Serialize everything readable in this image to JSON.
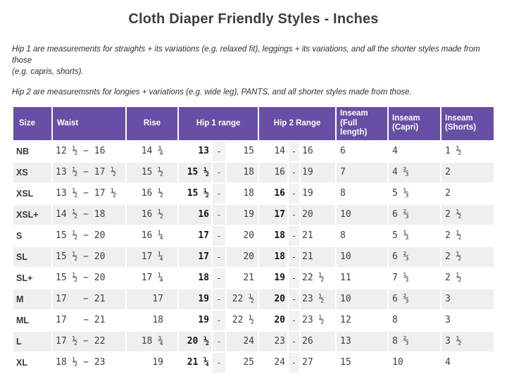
{
  "title": "Cloth Diaper Friendly Styles - Inches",
  "intro": {
    "hip1_lines": [
      "Hip 1 are measurements for straights + its variations (e.g. relaxed fit), leggings + its variations, and all the shorter styles made from those",
      "(e.g. capris, shorts)."
    ],
    "hip2": "Hip 2 are measuremsnts for longies + variations (e.g. wide leg), PANTS, and all shorter styles made from those."
  },
  "table": {
    "dash": "-",
    "colors": {
      "header_bg": "#674EA7",
      "header_text": "#FFFFFF",
      "row_stripe": "#EFEFEF",
      "dash_cell": "#F2F2F2"
    },
    "headers": {
      "size": "Size",
      "waist": "Waist",
      "rise": "Rise",
      "hip1": "Hip 1 range",
      "hip2": "Hip 2 Range",
      "inseam_full": "Inseam (Full length)",
      "inseam_capri": "Inseam (Capri)",
      "inseam_shorts": "Inseam (Shorts)"
    },
    "rows": [
      {
        "size": "NB",
        "waist": "12 ½ − 16",
        "rise": "14 ¾",
        "hip1_from": "13",
        "hip1_to": "15",
        "hip2_from": "14",
        "hip2_from_bold": false,
        "hip2_to": "16",
        "inseam_full": "6",
        "inseam_capri": "4",
        "inseam_shorts": "1 ½"
      },
      {
        "size": "XS",
        "waist": "13 ½ − 17 ½",
        "rise": "15 ½",
        "hip1_from": "15 ½",
        "hip1_to": "18",
        "hip2_from": "16",
        "hip2_from_bold": false,
        "hip2_to": "19",
        "inseam_full": "7",
        "inseam_capri": "4 ⅔",
        "inseam_shorts": "2"
      },
      {
        "size": "XSL",
        "waist": "13 ½ − 17 ½",
        "rise": "16 ½",
        "hip1_from": "15 ½",
        "hip1_to": "18",
        "hip2_from": "16",
        "hip2_from_bold": true,
        "hip2_to": "19",
        "inseam_full": "8",
        "inseam_capri": "5 ⅓",
        "inseam_shorts": "2"
      },
      {
        "size": "XSL+",
        "waist": "14 ½ − 18",
        "rise": "16 ½",
        "hip1_from": "16",
        "hip1_to": "19",
        "hip2_from": "17",
        "hip2_from_bold": true,
        "hip2_to": "20",
        "inseam_full": "10",
        "inseam_capri": "6 ⅔",
        "inseam_shorts": "2 ½"
      },
      {
        "size": "S",
        "waist": "15 ½ − 20",
        "rise": "16 ¼",
        "hip1_from": "17",
        "hip1_to": "20",
        "hip2_from": "18",
        "hip2_from_bold": true,
        "hip2_to": "21",
        "inseam_full": "8",
        "inseam_capri": "5 ⅓",
        "inseam_shorts": "2 ½"
      },
      {
        "size": "SL",
        "waist": "15 ½ − 20",
        "rise": "17 ¼",
        "hip1_from": "17",
        "hip1_to": "20",
        "hip2_from": "18",
        "hip2_from_bold": true,
        "hip2_to": "21",
        "inseam_full": "10",
        "inseam_capri": "6 ⅔",
        "inseam_shorts": "2 ½"
      },
      {
        "size": "SL+",
        "waist": "15 ½ − 20",
        "rise": "17 ¼",
        "hip1_from": "18",
        "hip1_to": "21",
        "hip2_from": "19",
        "hip2_from_bold": true,
        "hip2_to": "22 ½",
        "inseam_full": "11",
        "inseam_capri": "7 ⅓",
        "inseam_shorts": "2 ½"
      },
      {
        "size": "M",
        "waist": "17   − 21",
        "rise": "17",
        "hip1_from": "19",
        "hip1_to": "22 ½",
        "hip2_from": "20",
        "hip2_from_bold": true,
        "hip2_to": "23 ½",
        "inseam_full": "10",
        "inseam_capri": "6 ⅔",
        "inseam_shorts": "3"
      },
      {
        "size": "ML",
        "waist": "17   − 21",
        "rise": "18",
        "hip1_from": "19",
        "hip1_to": "22 ½",
        "hip2_from": "20",
        "hip2_from_bold": true,
        "hip2_to": "23 ½",
        "inseam_full": "12",
        "inseam_capri": "8",
        "inseam_shorts": "3"
      },
      {
        "size": "L",
        "waist": "17 ½ − 22",
        "rise": "18 ¾",
        "hip1_from": "20 ½",
        "hip1_to": "24",
        "hip2_from": "23",
        "hip2_from_bold": false,
        "hip2_to": "26",
        "inseam_full": "13",
        "inseam_capri": "8 ⅔",
        "inseam_shorts": "3 ½"
      },
      {
        "size": "XL",
        "waist": "18 ½ − 23",
        "rise": "19",
        "hip1_from": "21 ¼",
        "hip1_to": "25",
        "hip2_from": "24",
        "hip2_from_bold": false,
        "hip2_to": "27",
        "inseam_full": "15",
        "inseam_capri": "10",
        "inseam_shorts": "4"
      }
    ]
  }
}
